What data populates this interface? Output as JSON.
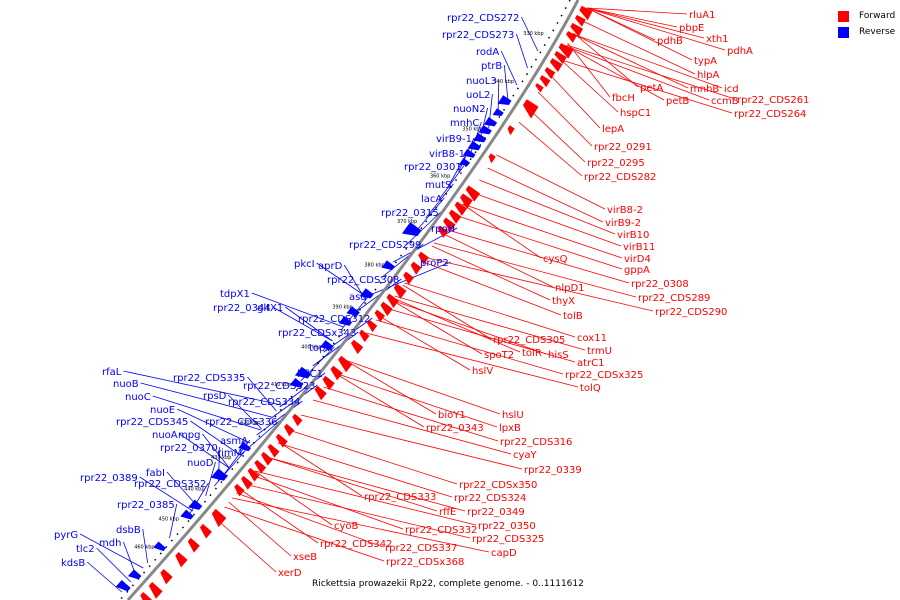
{
  "caption": "Rickettsia prowazekii Rp22, complete genome. - 0..1111612",
  "legend": [
    {
      "label": "Forward",
      "color": "#ff0000"
    },
    {
      "label": "Reverse",
      "color": "#0000ff"
    }
  ],
  "colors": {
    "forward": "#ff0000",
    "reverse": "#0000ff",
    "backbone": "#888888",
    "tick": "#000000"
  },
  "ticks": [
    "330 kbp",
    "340 kbp",
    "350 kbp",
    "360 kbp",
    "370 kbp",
    "380 kbp",
    "390 kbp",
    "400 kbp",
    "410 kbp",
    "420 kbp",
    "430 kbp",
    "440 kbp",
    "450 kbp",
    "460 kbp"
  ],
  "reverse_labels": [
    "rpr22_CDS272",
    "rpr22_CDS273",
    "rodA",
    "ptrB",
    "nuoL3",
    "uoL2",
    "nuoN2",
    "mnhC",
    "virB9-1",
    "virB8-1",
    "rpr22_0301",
    "mutS",
    "lacA",
    "rpr22_0315",
    "rpoH",
    "rpr22_CDS299",
    "proP2",
    "pkcI",
    "aprD",
    "rpr22_CDS308",
    "asd",
    "tdpX1",
    "rpr22_0344",
    "gltX1",
    "rpr22_CDS312",
    "rpr22_CDSx343",
    "topA",
    "hflC1",
    "rfaL",
    "nuoB",
    "rpr22_CDS335",
    "rpr22_CDS323",
    "nuoC",
    "rpsD",
    "rpr22_CDS334",
    "nuoE",
    "rpr22_CDS345",
    "rpr22_CDS336",
    "nuoA",
    "mpg",
    "rpr22_0370",
    "asmA",
    "rimM",
    "nuoD",
    "fabI",
    "rpr22_CDS352",
    "rpr22_0389",
    "rpr22_0385",
    "dsbB",
    "pyrG",
    "mdh",
    "tlc2",
    "kdsB"
  ],
  "forward_labels": [
    "rluA1",
    "pbpE",
    "xth1",
    "pdhB",
    "pdhA",
    "typA",
    "hlpA",
    "mnhB",
    "icd",
    "petA",
    "fbcH",
    "petB",
    "ccmB",
    "rpr22_CDS261",
    "hspC1",
    "rpr22_CDS264",
    "lepA",
    "rpr22_0291",
    "rpr22_0295",
    "rpr22_CDS282",
    "virB8-2",
    "virB9-2",
    "virB10",
    "virB11",
    "virD4",
    "cysQ",
    "gppA",
    "rpr22_0308",
    "nlpD1",
    "rpr22_CDS289",
    "thyX",
    "rpr22_CDS290",
    "tolB",
    "cox11",
    "rpr22_CDS305",
    "trmU",
    "spoT2",
    "tolR",
    "hisS",
    "atrC1",
    "rpr22_CDSx325",
    "hslV",
    "tolQ",
    "bioY1",
    "hslU",
    "rpr22_0343",
    "lpxB",
    "rpr22_CDS316",
    "cyaY",
    "rpr22_0339",
    "rpr22_CDSx350",
    "rpr22_CDS333",
    "rpr22_CDS324",
    "rffE",
    "rpr22_0349",
    "rpr22_0350",
    "rpr22_CDS332",
    "rpr22_CDS325",
    "cyoB",
    "rpr22_CDS342",
    "rpr22_CDS337",
    "capD",
    "xseB",
    "rpr22_CDSx368",
    "xerD"
  ]
}
